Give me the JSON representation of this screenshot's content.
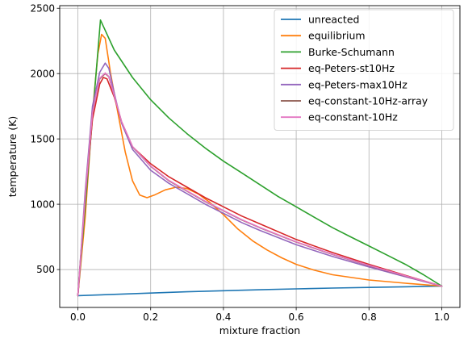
{
  "chart_data": {
    "type": "line",
    "title": "",
    "xlabel": "mixture fraction",
    "ylabel": "temperature (K)",
    "xlim": [
      -0.05,
      1.05
    ],
    "ylim": [
      210,
      2520
    ],
    "xticks": [
      0.0,
      0.2,
      0.4,
      0.6,
      0.8,
      1.0
    ],
    "xtick_labels": [
      "0.0",
      "0.2",
      "0.4",
      "0.6",
      "0.8",
      "1.0"
    ],
    "yticks": [
      500,
      1000,
      1500,
      2000,
      2500
    ],
    "ytick_labels": [
      "500",
      "1000",
      "1500",
      "2000",
      "2500"
    ],
    "grid": true,
    "legend_position": "top-right",
    "series": [
      {
        "name": "unreacted",
        "color": "#1f77b4",
        "x": [
          0.0,
          0.1,
          0.2,
          0.3,
          0.4,
          0.5,
          0.6,
          0.7,
          0.8,
          0.9,
          1.0
        ],
        "y": [
          300,
          310,
          320,
          330,
          338,
          345,
          352,
          358,
          363,
          368,
          373
        ]
      },
      {
        "name": "equilibrium",
        "color": "#ff7f0e",
        "x": [
          0.0,
          0.02,
          0.04,
          0.055,
          0.065,
          0.075,
          0.09,
          0.11,
          0.13,
          0.15,
          0.17,
          0.19,
          0.21,
          0.24,
          0.27,
          0.3,
          0.33,
          0.36,
          0.4,
          0.44,
          0.48,
          0.52,
          0.56,
          0.6,
          0.65,
          0.7,
          0.8,
          0.9,
          1.0
        ],
        "y": [
          300,
          900,
          1700,
          2150,
          2300,
          2270,
          2000,
          1700,
          1400,
          1180,
          1070,
          1050,
          1070,
          1110,
          1130,
          1120,
          1080,
          1020,
          920,
          810,
          720,
          650,
          590,
          540,
          495,
          460,
          420,
          395,
          373
        ]
      },
      {
        "name": "Burke-Schumann",
        "color": "#2ca02c",
        "x": [
          0.0,
          0.062,
          0.1,
          0.15,
          0.2,
          0.25,
          0.3,
          0.35,
          0.4,
          0.45,
          0.5,
          0.55,
          0.6,
          0.65,
          0.7,
          0.75,
          0.8,
          0.85,
          0.9,
          0.95,
          1.0
        ],
        "y": [
          300,
          2410,
          2180,
          1970,
          1800,
          1660,
          1540,
          1430,
          1330,
          1240,
          1150,
          1060,
          980,
          900,
          820,
          750,
          680,
          610,
          540,
          460,
          373
        ]
      },
      {
        "name": "eq-Peters-st10Hz",
        "color": "#d62728",
        "x": [
          0.0,
          0.02,
          0.04,
          0.06,
          0.07,
          0.08,
          0.1,
          0.12,
          0.15,
          0.2,
          0.25,
          0.3,
          0.35,
          0.4,
          0.45,
          0.5,
          0.6,
          0.7,
          0.8,
          0.9,
          1.0
        ],
        "y": [
          300,
          1050,
          1650,
          1920,
          1970,
          1960,
          1820,
          1630,
          1440,
          1310,
          1210,
          1130,
          1050,
          980,
          910,
          850,
          730,
          630,
          540,
          455,
          373
        ]
      },
      {
        "name": "eq-Peters-max10Hz",
        "color": "#9467bd",
        "x": [
          0.0,
          0.02,
          0.04,
          0.06,
          0.075,
          0.085,
          0.1,
          0.12,
          0.15,
          0.2,
          0.25,
          0.3,
          0.35,
          0.4,
          0.45,
          0.5,
          0.6,
          0.7,
          0.8,
          0.9,
          1.0
        ],
        "y": [
          300,
          1100,
          1750,
          2010,
          2080,
          2040,
          1850,
          1620,
          1420,
          1260,
          1160,
          1080,
          1000,
          930,
          860,
          800,
          690,
          600,
          520,
          445,
          373
        ]
      },
      {
        "name": "eq-constant-10Hz-array",
        "color": "#8c564b",
        "x": [
          0.0,
          0.02,
          0.04,
          0.06,
          0.075,
          0.085,
          0.1,
          0.12,
          0.15,
          0.2,
          0.25,
          0.3,
          0.35,
          0.4,
          0.45,
          0.5,
          0.6,
          0.7,
          0.8,
          0.9,
          1.0
        ],
        "y": [
          300,
          1060,
          1700,
          1960,
          2000,
          1975,
          1830,
          1630,
          1440,
          1290,
          1180,
          1100,
          1020,
          950,
          880,
          820,
          710,
          615,
          530,
          450,
          373
        ]
      },
      {
        "name": "eq-constant-10Hz",
        "color": "#e377c2",
        "x": [
          0.0,
          0.02,
          0.04,
          0.06,
          0.075,
          0.085,
          0.1,
          0.12,
          0.15,
          0.2,
          0.25,
          0.3,
          0.35,
          0.4,
          0.45,
          0.5,
          0.6,
          0.7,
          0.8,
          0.9,
          1.0
        ],
        "y": [
          300,
          1060,
          1700,
          1965,
          2005,
          1978,
          1832,
          1632,
          1442,
          1292,
          1182,
          1102,
          1022,
          952,
          882,
          822,
          712,
          617,
          532,
          452,
          373
        ]
      }
    ]
  }
}
